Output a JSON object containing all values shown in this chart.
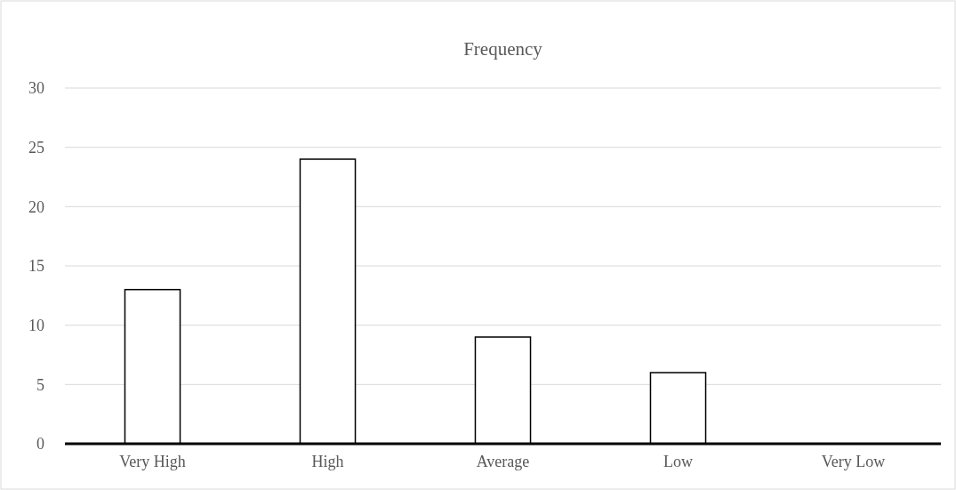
{
  "chart_data": {
    "type": "bar",
    "title": "Frequency",
    "categories": [
      "Very High",
      "High",
      "Average",
      "Low",
      "Very Low"
    ],
    "values": [
      13,
      24,
      9,
      6,
      0
    ],
    "color": "#ffffff",
    "ylim": [
      0,
      30
    ],
    "yticks": [
      0,
      5,
      10,
      15,
      20,
      25,
      30
    ],
    "grid": "y"
  }
}
